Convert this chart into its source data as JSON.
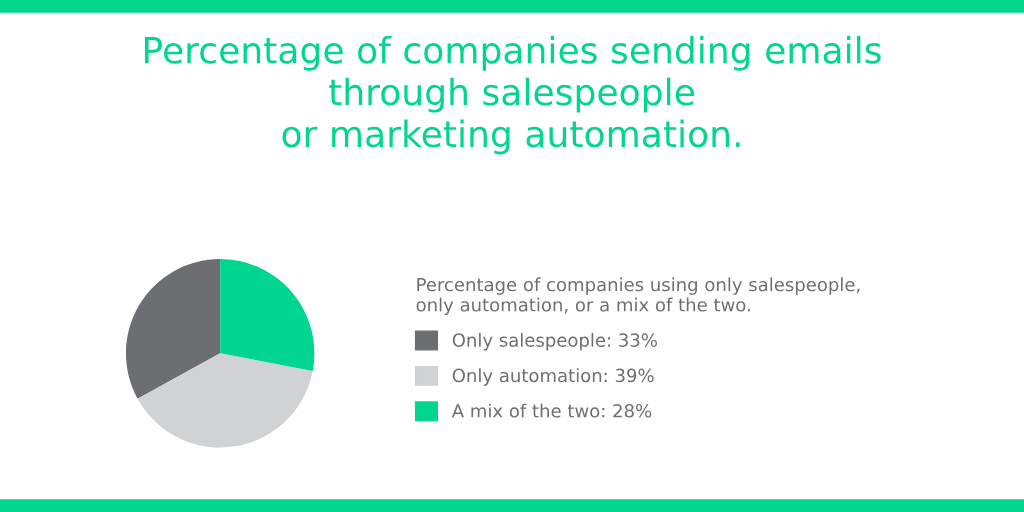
{
  "chart_data": {
    "type": "pie",
    "title": "Percentage of companies sending emails\nthrough salespeople\nor marketing automation.",
    "legend_title": "Percentage of companies using only salespeople,\nonly automation, or a mix of the two.",
    "categories": [
      "Only salespeople: 33%",
      "Only automation: 39%",
      "A mix of the two: 28%"
    ],
    "values": [
      33,
      39,
      28
    ],
    "colors": [
      "#6d6e71",
      "#d1d2d4",
      "#00d68f"
    ],
    "legend": "right"
  }
}
